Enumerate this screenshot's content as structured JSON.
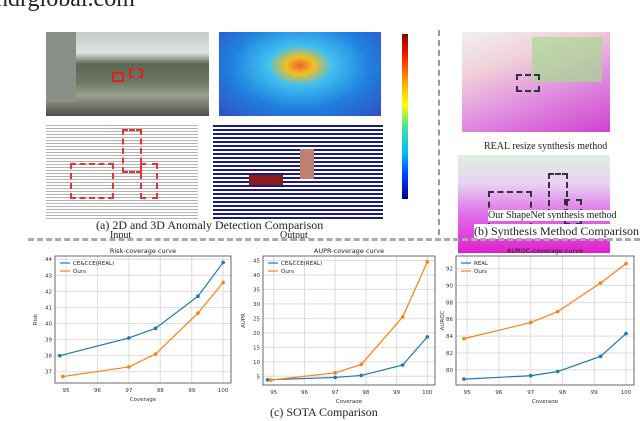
{
  "watermark": "ndrglobal.com",
  "panel_a": {
    "input_label": "Input",
    "output_label": "Output",
    "caption": "(a) 2D and 3D Anomaly Detection  Comparison"
  },
  "panel_b": {
    "top_label": "REAL resize synthesis method",
    "bottom_label": "Our ShapeNet synthesis method",
    "caption": "(b) Synthesis Method Comparison"
  },
  "panel_c": {
    "caption": "(c) SOTA Comparison"
  },
  "colors": {
    "series1": "#1f77b4",
    "series2": "#ff7f0e"
  },
  "chart_data": [
    {
      "type": "line",
      "title": "Risk-coverage curve",
      "xlabel": "Coverage",
      "ylabel": "Risk",
      "xlim": [
        94.65,
        100.25
      ],
      "ylim": [
        36.3,
        44.2
      ],
      "xticks": [
        95,
        96,
        97,
        98,
        99,
        100
      ],
      "yticks": [
        37,
        38,
        39,
        40,
        41,
        42,
        43,
        44
      ],
      "legend": "top-left",
      "grid": true,
      "series": [
        {
          "name": "CE&CCE(REAL)",
          "x": [
            94.8,
            97,
            97.85,
            99.2,
            100
          ],
          "y": [
            38.0,
            39.1,
            39.7,
            41.7,
            43.8
          ]
        },
        {
          "name": "Ours",
          "x": [
            94.9,
            97,
            97.85,
            99.2,
            100
          ],
          "y": [
            36.7,
            37.3,
            38.1,
            40.65,
            42.55
          ]
        }
      ]
    },
    {
      "type": "line",
      "title": "AUPR-coverage curve",
      "xlabel": "Coverage",
      "ylabel": "AUPR",
      "xlim": [
        94.65,
        100.25
      ],
      "ylim": [
        2,
        46.5
      ],
      "xticks": [
        95,
        96,
        97,
        98,
        99,
        100
      ],
      "yticks": [
        5,
        10,
        15,
        20,
        25,
        30,
        35,
        40,
        45
      ],
      "legend": "top-left",
      "grid": true,
      "series": [
        {
          "name": "CE&CCE(REAL)",
          "x": [
            94.8,
            97,
            97.85,
            99.2,
            100
          ],
          "y": [
            3.8,
            4.6,
            5.3,
            8.9,
            18.6
          ]
        },
        {
          "name": "Ours",
          "x": [
            94.9,
            97,
            97.85,
            99.2,
            100
          ],
          "y": [
            3.7,
            6.2,
            9.1,
            25.5,
            44.5
          ]
        }
      ]
    },
    {
      "type": "line",
      "title": "AUROC-coverage curve",
      "xlabel": "Coverage",
      "ylabel": "AUROC",
      "xlim": [
        94.65,
        100.25
      ],
      "ylim": [
        78.2,
        93.5
      ],
      "xticks": [
        95,
        96,
        97,
        98,
        99,
        100
      ],
      "yticks": [
        80,
        82,
        84,
        86,
        88,
        90,
        92
      ],
      "legend": "top-left",
      "grid": true,
      "series": [
        {
          "name": "REAL",
          "x": [
            94.9,
            97,
            97.85,
            99.2,
            100
          ],
          "y": [
            78.9,
            79.3,
            79.8,
            81.6,
            84.3
          ]
        },
        {
          "name": "Ours",
          "x": [
            94.9,
            97,
            97.85,
            99.2,
            100
          ],
          "y": [
            83.7,
            85.6,
            86.9,
            90.3,
            92.6
          ]
        }
      ]
    }
  ]
}
